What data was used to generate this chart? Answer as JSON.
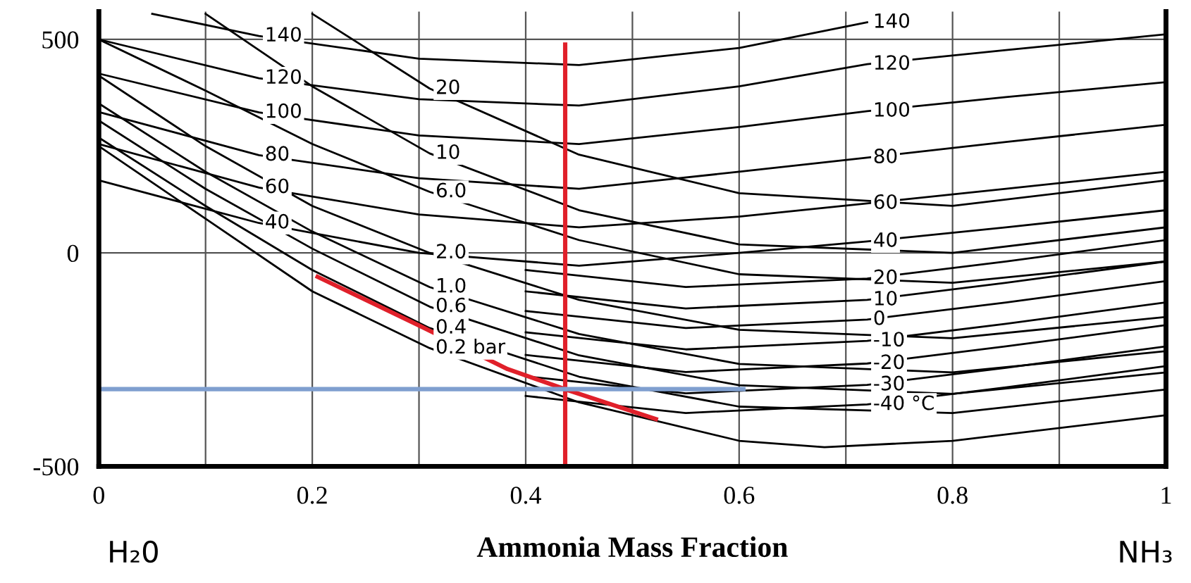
{
  "chart_data": {
    "type": "line",
    "xlabel": "Ammonia Mass Fraction",
    "xlim": [
      0,
      1
    ],
    "ylim": [
      -500,
      565
    ],
    "xticks": [
      0,
      {
        "value": 0.1,
        "label": null
      },
      0.2,
      {
        "value": 0.3,
        "label": null
      },
      0.4,
      {
        "value": 0.5,
        "label": null
      },
      0.6,
      {
        "value": 0.7,
        "label": null
      },
      0.8,
      {
        "value": 0.9,
        "label": null
      },
      1
    ],
    "yticks": [
      -500,
      0,
      500
    ],
    "grid": true,
    "legend": false,
    "line_style": "solid",
    "marker": "none",
    "series": [
      {
        "color": "#000000",
        "x": [
          0.2,
          0.31,
          0.45,
          0.6,
          0.8,
          1
        ],
        "values": [
          560,
          385,
          230,
          140,
          110,
          170
        ]
      },
      {
        "color": "#000000",
        "x": [
          0.1,
          0.2,
          0.31,
          0.45,
          0.6,
          0.8,
          1
        ],
        "values": [
          560,
          390,
          233,
          100,
          20,
          0,
          60
        ]
      },
      {
        "color": "#000000",
        "x": [
          0,
          0.1,
          0.2,
          0.31,
          0.45,
          0.6,
          0.8,
          1
        ],
        "values": [
          500,
          380,
          255,
          143,
          30,
          -50,
          -70,
          -20
        ]
      },
      {
        "color": "#000000",
        "x": [
          0,
          0.1,
          0.2,
          0.31,
          0.45,
          0.6,
          0.8,
          1
        ],
        "values": [
          415,
          250,
          110,
          0,
          -110,
          -180,
          -200,
          -150
        ]
      },
      {
        "color": "#000000",
        "x": [
          0,
          0.1,
          0.2,
          0.31,
          0.45,
          0.6,
          0.8,
          1
        ],
        "values": [
          350,
          190,
          50,
          -80,
          -190,
          -260,
          -280,
          -230
        ]
      },
      {
        "color": "#000000",
        "x": [
          0,
          0.1,
          0.2,
          0.31,
          0.45,
          0.6,
          0.8,
          1
        ],
        "values": [
          310,
          150,
          10,
          -126,
          -240,
          -310,
          -330,
          -280
        ]
      },
      {
        "color": "#000000",
        "x": [
          0,
          0.1,
          0.2,
          0.31,
          0.45,
          0.6,
          0.8,
          1
        ],
        "values": [
          270,
          110,
          -40,
          -176,
          -290,
          -360,
          -375,
          -320
        ]
      },
      {
        "color": "#000000",
        "x": [
          0,
          0.1,
          0.2,
          0.31,
          0.45,
          0.6,
          0.68,
          0.8,
          1
        ],
        "values": [
          250,
          80,
          -90,
          -223,
          -350,
          -440,
          -455,
          -440,
          -380
        ]
      },
      {
        "color": "#000000",
        "x": [
          0.05,
          0.15,
          0.3,
          0.45,
          0.6,
          0.72
        ],
        "values": [
          560,
          508,
          455,
          440,
          480,
          540
        ]
      },
      {
        "color": "#000000",
        "x": [
          0,
          0.15,
          0.3,
          0.45,
          0.6,
          0.72,
          0.85,
          1
        ],
        "values": [
          500,
          409,
          360,
          345,
          390,
          442,
          475,
          512
        ]
      },
      {
        "color": "#000000",
        "x": [
          0,
          0.15,
          0.3,
          0.45,
          0.6,
          0.72,
          0.85,
          1
        ],
        "values": [
          420,
          329,
          275,
          255,
          295,
          332,
          365,
          400
        ]
      },
      {
        "color": "#000000",
        "x": [
          0,
          0.15,
          0.3,
          0.45,
          0.6,
          0.72,
          0.85,
          1
        ],
        "values": [
          330,
          229,
          175,
          150,
          190,
          223,
          260,
          300
        ]
      },
      {
        "color": "#000000",
        "x": [
          0,
          0.15,
          0.3,
          0.45,
          0.6,
          0.72,
          0.85,
          1
        ],
        "values": [
          255,
          153,
          90,
          60,
          85,
          116,
          150,
          190
        ]
      },
      {
        "color": "#000000",
        "x": [
          0,
          0.15,
          0.3,
          0.45,
          0.6,
          0.72,
          0.85,
          1
        ],
        "values": [
          170,
          70,
          0,
          -30,
          0,
          27,
          60,
          100
        ]
      },
      {
        "color": "#000000",
        "x": [
          0.4,
          0.55,
          0.72,
          0.85,
          1
        ],
        "values": [
          -40,
          -80,
          -60,
          -20,
          30
        ]
      },
      {
        "color": "#000000",
        "x": [
          0.4,
          0.55,
          0.72,
          0.85,
          1
        ],
        "values": [
          -90,
          -130,
          -110,
          -70,
          -20
        ]
      },
      {
        "color": "#000000",
        "x": [
          0.4,
          0.55,
          0.72,
          0.85,
          1
        ],
        "values": [
          -136,
          -176,
          -156,
          -116,
          -66
        ]
      },
      {
        "color": "#000000",
        "x": [
          0.4,
          0.55,
          0.72,
          0.85,
          1
        ],
        "values": [
          -186,
          -226,
          -206,
          -166,
          -116
        ]
      },
      {
        "color": "#000000",
        "x": [
          0.4,
          0.55,
          0.72,
          0.85,
          1
        ],
        "values": [
          -239,
          -279,
          -259,
          -219,
          -169
        ]
      },
      {
        "color": "#000000",
        "x": [
          0.4,
          0.55,
          0.72,
          0.85,
          1
        ],
        "values": [
          -289,
          -329,
          -309,
          -269,
          -219
        ]
      },
      {
        "color": "#000000",
        "x": [
          0.4,
          0.55,
          0.72,
          0.85,
          1
        ],
        "values": [
          -335,
          -375,
          -355,
          -315,
          -265
        ]
      },
      {
        "color": "#e0202a",
        "x": [
          0.205,
          0.3,
          0.383,
          0.44,
          0.522
        ],
        "values": [
          -56,
          -170,
          -272,
          -322,
          -389
        ]
      },
      {
        "color": "#e0202a",
        "x": [
          0.437,
          0.437
        ],
        "values": [
          488,
          -500
        ]
      },
      {
        "color": "#7f9fcf",
        "x": [
          0,
          0.604
        ],
        "values": [
          -319,
          -319
        ]
      }
    ],
    "annotations": [
      {
        "text": "20",
        "x": 0.31,
        "y": 385
      },
      {
        "text": "10",
        "x": 0.31,
        "y": 233
      },
      {
        "text": "6.0",
        "x": 0.31,
        "y": 143
      },
      {
        "text": "2.0",
        "x": 0.31,
        "y": 0
      },
      {
        "text": "1.0",
        "x": 0.31,
        "y": -80
      },
      {
        "text": "0.6",
        "x": 0.31,
        "y": -126
      },
      {
        "text": "0.4",
        "x": 0.31,
        "y": -176
      },
      {
        "text": "0.2 bar",
        "x": 0.31,
        "y": -223
      },
      {
        "text": "140",
        "x": 0.15,
        "y": 508
      },
      {
        "text": "120",
        "x": 0.15,
        "y": 409
      },
      {
        "text": "100",
        "x": 0.15,
        "y": 329
      },
      {
        "text": "80",
        "x": 0.15,
        "y": 229
      },
      {
        "text": "60",
        "x": 0.15,
        "y": 153
      },
      {
        "text": "40",
        "x": 0.15,
        "y": 70
      },
      {
        "text": "140",
        "x": 0.72,
        "y": 540
      },
      {
        "text": "120",
        "x": 0.72,
        "y": 442
      },
      {
        "text": "100",
        "x": 0.72,
        "y": 332
      },
      {
        "text": "80",
        "x": 0.72,
        "y": 223
      },
      {
        "text": "60",
        "x": 0.72,
        "y": 116
      },
      {
        "text": "40",
        "x": 0.72,
        "y": 27
      },
      {
        "text": "20",
        "x": 0.72,
        "y": -60
      },
      {
        "text": "10",
        "x": 0.72,
        "y": -110
      },
      {
        "text": "0",
        "x": 0.72,
        "y": -156
      },
      {
        "text": "-10",
        "x": 0.72,
        "y": -206
      },
      {
        "text": "-20",
        "x": 0.72,
        "y": -259
      },
      {
        "text": "-30",
        "x": 0.72,
        "y": -309
      },
      {
        "text": "-40 °C",
        "x": 0.72,
        "y": -355
      },
      "H₂0",
      "NH₃"
    ]
  }
}
